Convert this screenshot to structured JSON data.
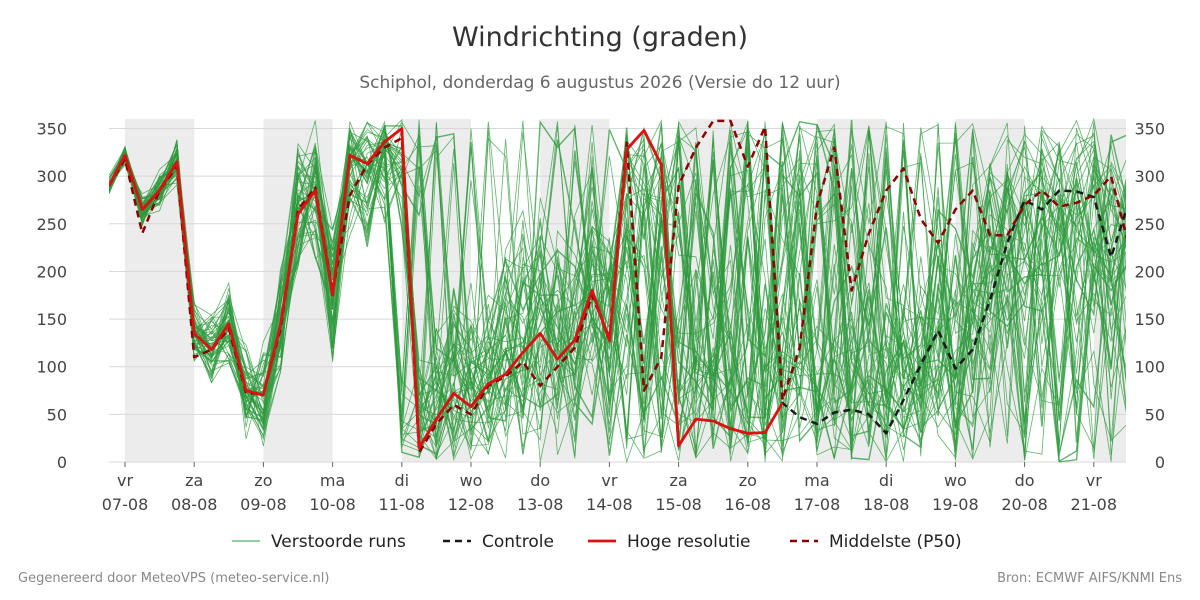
{
  "header": {
    "title": "Windrichting (graden)",
    "subtitle": "Schiphol, donderdag  6 augustus 2026 (Versie do 12 uur)"
  },
  "footer": {
    "left": "Gegenereerd door MeteoVPS (meteo-service.nl)",
    "right": "Bron: ECMWF AIFS/KNMI Ens"
  },
  "colors": {
    "ensemble": "#2e9a3c",
    "control": "#1a1a1a",
    "high_res": "#dd1111",
    "median": "#8b0000",
    "weekend_band": "#ececec",
    "grid": "#d8d8d8"
  },
  "chart_data": {
    "type": "line",
    "title": "Windrichting (graden)",
    "x_unit": "dagen vanaf vr 07-08",
    "xlim": [
      -0.23,
      14.55
    ],
    "ylim": [
      0,
      360
    ],
    "y_ticks": [
      0,
      50,
      100,
      150,
      200,
      250,
      300,
      350
    ],
    "grid": true,
    "legend_position": "bottom",
    "x_ticks": [
      {
        "day": "vr",
        "date": "07-08"
      },
      {
        "day": "za",
        "date": "08-08"
      },
      {
        "day": "zo",
        "date": "09-08"
      },
      {
        "day": "ma",
        "date": "10-08"
      },
      {
        "day": "di",
        "date": "11-08"
      },
      {
        "day": "wo",
        "date": "12-08"
      },
      {
        "day": "do",
        "date": "13-08"
      },
      {
        "day": "vr",
        "date": "14-08"
      },
      {
        "day": "za",
        "date": "15-08"
      },
      {
        "day": "zo",
        "date": "16-08"
      },
      {
        "day": "ma",
        "date": "17-08"
      },
      {
        "day": "di",
        "date": "18-08"
      },
      {
        "day": "wo",
        "date": "19-08"
      },
      {
        "day": "do",
        "date": "20-08"
      },
      {
        "day": "vr",
        "date": "21-08"
      }
    ],
    "weekend_bands": [
      [
        0,
        1
      ],
      [
        2,
        3
      ],
      [
        4,
        5
      ],
      [
        6,
        7
      ],
      [
        8,
        9
      ],
      [
        10,
        11
      ],
      [
        12,
        13
      ],
      [
        14,
        14.55
      ]
    ],
    "legend": [
      {
        "key": "ensemble",
        "label": "Verstoorde runs"
      },
      {
        "key": "control",
        "label": "Controle"
      },
      {
        "key": "high_res",
        "label": "Hoge resolutie"
      },
      {
        "key": "median",
        "label": "Middelste (P50)"
      }
    ],
    "series": [
      {
        "key": "high_res",
        "name": "Hoge resolutie",
        "x": [
          -0.23,
          0,
          0.25,
          0.5,
          0.75,
          1,
          1.25,
          1.5,
          1.75,
          2,
          2.25,
          2.5,
          2.75,
          3,
          3.25,
          3.5,
          3.75,
          4,
          4.25,
          4.5,
          4.75,
          5,
          5.25,
          5.5,
          5.75,
          6,
          6.25,
          6.5,
          6.75,
          7,
          7.25,
          7.5,
          7.75,
          8,
          8.25,
          8.5,
          8.75,
          9,
          9.25,
          9.5
        ],
        "values": [
          290,
          322,
          265,
          285,
          315,
          135,
          118,
          145,
          75,
          70,
          145,
          260,
          285,
          175,
          322,
          313,
          336,
          350,
          15,
          45,
          72,
          58,
          82,
          92,
          115,
          135,
          108,
          128,
          180,
          127,
          328,
          348,
          312,
          17,
          45,
          43,
          35,
          30,
          31,
          62
        ]
      },
      {
        "key": "median",
        "name": "Middelste (P50)",
        "x": [
          -0.23,
          0,
          0.25,
          0.5,
          0.75,
          1,
          1.25,
          1.5,
          1.75,
          2,
          2.25,
          2.5,
          2.75,
          3,
          3.25,
          3.5,
          3.75,
          4,
          4.25,
          4.5,
          4.75,
          5,
          5.25,
          5.5,
          5.75,
          6,
          6.25,
          6.5,
          6.75,
          7,
          7.25,
          7.5,
          7.75,
          8,
          8.25,
          8.5,
          8.75,
          9,
          9.25,
          9.5,
          9.75,
          10,
          10.25,
          10.5,
          10.75,
          11,
          11.25,
          11.5,
          11.75,
          12,
          12.25,
          12.5,
          12.75,
          13,
          13.25,
          13.5,
          13.75,
          14,
          14.25,
          14.55
        ],
        "values": [
          290,
          318,
          240,
          285,
          310,
          110,
          118,
          140,
          72,
          72,
          140,
          265,
          288,
          178,
          280,
          312,
          330,
          340,
          10,
          40,
          60,
          50,
          80,
          90,
          105,
          80,
          100,
          120,
          175,
          130,
          335,
          75,
          110,
          290,
          330,
          358,
          358,
          310,
          352,
          65,
          120,
          270,
          330,
          180,
          240,
          285,
          308,
          255,
          230,
          265,
          285,
          238,
          238,
          270,
          285,
          268,
          272,
          280,
          300,
          215
        ]
      },
      {
        "key": "control",
        "name": "Controle",
        "x": [
          -0.23,
          0,
          0.25,
          0.5,
          0.75,
          1,
          1.25,
          1.5,
          1.75,
          2,
          2.25,
          2.5,
          2.75,
          3,
          3.25,
          3.5,
          3.75,
          4,
          4.25,
          4.5,
          4.75,
          5,
          5.25,
          5.5,
          5.75,
          6,
          6.25,
          6.5,
          6.75,
          7,
          7.25,
          7.5,
          7.75,
          8,
          8.25,
          8.5,
          8.75,
          9,
          9.25,
          9.5,
          9.75,
          10,
          10.25,
          10.5,
          10.75,
          11,
          11.25,
          11.5,
          11.75,
          12,
          12.25,
          12.5,
          12.75,
          13,
          13.25,
          13.5,
          13.75,
          14,
          14.25,
          14.55
        ],
        "values": [
          290,
          322,
          265,
          285,
          315,
          135,
          118,
          145,
          75,
          70,
          145,
          260,
          285,
          175,
          322,
          313,
          336,
          350,
          15,
          45,
          72,
          58,
          82,
          92,
          115,
          135,
          108,
          128,
          180,
          127,
          328,
          348,
          312,
          17,
          45,
          43,
          35,
          30,
          31,
          62,
          47,
          40,
          52,
          55,
          50,
          30,
          65,
          102,
          138,
          98,
          118,
          170,
          230,
          275,
          265,
          285,
          284,
          278,
          215,
          283
        ]
      }
    ]
  }
}
